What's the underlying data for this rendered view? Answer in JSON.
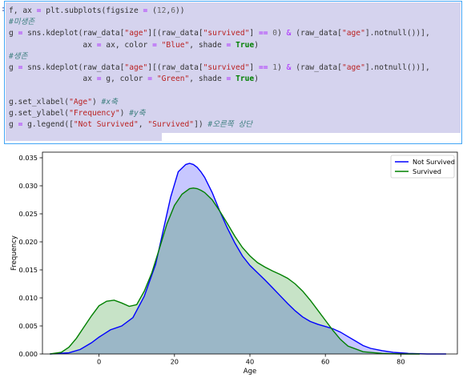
{
  "prompt": ":",
  "code_lines": [
    [
      {
        "t": "f, ax ",
        "c": ""
      },
      {
        "t": "=",
        "c": "op"
      },
      {
        "t": " plt.subplots(figsize ",
        "c": ""
      },
      {
        "t": "=",
        "c": "op"
      },
      {
        "t": " (",
        "c": ""
      },
      {
        "t": "12",
        "c": "nu"
      },
      {
        "t": ",",
        "c": ""
      },
      {
        "t": "6",
        "c": "nu"
      },
      {
        "t": "))",
        "c": ""
      }
    ],
    [
      {
        "t": "#미생존",
        "c": "cm"
      }
    ],
    [
      {
        "t": "g ",
        "c": ""
      },
      {
        "t": "=",
        "c": "op"
      },
      {
        "t": " sns.kdeplot(raw_data[",
        "c": ""
      },
      {
        "t": "\"age\"",
        "c": "st"
      },
      {
        "t": "][(raw_data[",
        "c": ""
      },
      {
        "t": "\"survived\"",
        "c": "st"
      },
      {
        "t": "] ",
        "c": ""
      },
      {
        "t": "==",
        "c": "op"
      },
      {
        "t": " ",
        "c": ""
      },
      {
        "t": "0",
        "c": "nu"
      },
      {
        "t": ") ",
        "c": ""
      },
      {
        "t": "&",
        "c": "op"
      },
      {
        "t": " (raw_data[",
        "c": ""
      },
      {
        "t": "\"age\"",
        "c": "st"
      },
      {
        "t": "].notnull())],",
        "c": ""
      }
    ],
    [
      {
        "t": "                ax ",
        "c": ""
      },
      {
        "t": "=",
        "c": "op"
      },
      {
        "t": " ax, color ",
        "c": ""
      },
      {
        "t": "=",
        "c": "op"
      },
      {
        "t": " ",
        "c": ""
      },
      {
        "t": "\"Blue\"",
        "c": "st"
      },
      {
        "t": ", shade ",
        "c": ""
      },
      {
        "t": "=",
        "c": "op"
      },
      {
        "t": " ",
        "c": ""
      },
      {
        "t": "True",
        "c": "kw"
      },
      {
        "t": ")",
        "c": ""
      }
    ],
    [
      {
        "t": "#생존",
        "c": "cm"
      }
    ],
    [
      {
        "t": "g ",
        "c": ""
      },
      {
        "t": "=",
        "c": "op"
      },
      {
        "t": " sns.kdeplot(raw_data[",
        "c": ""
      },
      {
        "t": "\"age\"",
        "c": "st"
      },
      {
        "t": "][(raw_data[",
        "c": ""
      },
      {
        "t": "\"survived\"",
        "c": "st"
      },
      {
        "t": "] ",
        "c": ""
      },
      {
        "t": "==",
        "c": "op"
      },
      {
        "t": " ",
        "c": ""
      },
      {
        "t": "1",
        "c": "nu"
      },
      {
        "t": ") ",
        "c": ""
      },
      {
        "t": "&",
        "c": "op"
      },
      {
        "t": " (raw_data[",
        "c": ""
      },
      {
        "t": "\"age\"",
        "c": "st"
      },
      {
        "t": "].notnull())],",
        "c": ""
      }
    ],
    [
      {
        "t": "                ax ",
        "c": ""
      },
      {
        "t": "=",
        "c": "op"
      },
      {
        "t": " g, color ",
        "c": ""
      },
      {
        "t": "=",
        "c": "op"
      },
      {
        "t": " ",
        "c": ""
      },
      {
        "t": "\"Green\"",
        "c": "st"
      },
      {
        "t": ", shade ",
        "c": ""
      },
      {
        "t": "=",
        "c": "op"
      },
      {
        "t": " ",
        "c": ""
      },
      {
        "t": "True",
        "c": "kw"
      },
      {
        "t": ")",
        "c": ""
      }
    ],
    [
      {
        "t": "",
        "c": ""
      }
    ],
    [
      {
        "t": "g.set_xlabel(",
        "c": ""
      },
      {
        "t": "\"Age\"",
        "c": "st"
      },
      {
        "t": ") ",
        "c": ""
      },
      {
        "t": "#x축",
        "c": "cm"
      }
    ],
    [
      {
        "t": "g.set_ylabel(",
        "c": ""
      },
      {
        "t": "\"Frequency\"",
        "c": "st"
      },
      {
        "t": ") ",
        "c": ""
      },
      {
        "t": "#y축",
        "c": "cm"
      }
    ],
    [
      {
        "t": "g ",
        "c": ""
      },
      {
        "t": "=",
        "c": "op"
      },
      {
        "t": " g.legend([",
        "c": ""
      },
      {
        "t": "\"Not Survived\"",
        "c": "st"
      },
      {
        "t": ", ",
        "c": ""
      },
      {
        "t": "\"Survived\"",
        "c": "st"
      },
      {
        "t": "]) ",
        "c": ""
      },
      {
        "t": "#오른쪽 상단",
        "c": "cm"
      }
    ]
  ],
  "colors": {
    "not_survived": "#0000ff",
    "survived": "#008000",
    "cell_border": "#42a5f5",
    "code_bg": "#d5d3ee"
  },
  "chart_data": {
    "type": "area",
    "xlabel": "Age",
    "ylabel": "Frequency",
    "xlim": [
      -15,
      95
    ],
    "ylim": [
      0,
      0.036
    ],
    "xticks": [
      0,
      20,
      40,
      60,
      80
    ],
    "xtick_labels": [
      "0",
      "20",
      "40",
      "60",
      "80"
    ],
    "yticks": [
      0.0,
      0.005,
      0.01,
      0.015,
      0.02,
      0.025,
      0.03,
      0.035
    ],
    "ytick_labels": [
      "0.000",
      "0.005",
      "0.010",
      "0.015",
      "0.020",
      "0.025",
      "0.030",
      "0.035"
    ],
    "grid": false,
    "legend": "top-right",
    "series": [
      {
        "name": "Not Survived",
        "color": "#0000ff",
        "x": [
          -13,
          -8,
          -5,
          -2,
          0,
          3,
          6,
          9,
          12,
          15,
          17,
          19,
          21,
          23,
          24,
          25,
          26,
          27,
          28,
          30,
          32,
          34,
          36,
          38,
          40,
          42,
          44,
          46,
          48,
          50,
          52,
          54,
          56,
          58,
          60,
          62,
          64,
          66,
          68,
          70,
          72,
          75,
          78,
          82,
          87,
          92
        ],
        "y": [
          0,
          0.0002,
          0.0008,
          0.002,
          0.003,
          0.0043,
          0.005,
          0.0065,
          0.0103,
          0.016,
          0.022,
          0.028,
          0.0325,
          0.0338,
          0.034,
          0.0338,
          0.0333,
          0.0325,
          0.0315,
          0.0288,
          0.0255,
          0.0225,
          0.0198,
          0.0175,
          0.0158,
          0.0145,
          0.0132,
          0.0118,
          0.0104,
          0.009,
          0.0077,
          0.0066,
          0.0058,
          0.0053,
          0.0049,
          0.0045,
          0.0039,
          0.0031,
          0.0023,
          0.0015,
          0.001,
          0.0006,
          0.0003,
          0.0001,
          0,
          0
        ]
      },
      {
        "name": "Survived",
        "color": "#008000",
        "x": [
          -13,
          -10,
          -8,
          -6,
          -4,
          -2,
          0,
          2,
          4,
          6,
          8,
          10,
          12,
          14,
          16,
          18,
          20,
          22,
          24,
          25,
          26,
          27,
          28,
          30,
          32,
          34,
          36,
          38,
          40,
          42,
          44,
          46,
          48,
          50,
          52,
          54,
          56,
          58,
          60,
          62,
          64,
          66,
          70,
          75,
          80,
          85
        ],
        "y": [
          0,
          0.0003,
          0.0012,
          0.0028,
          0.0048,
          0.0068,
          0.0086,
          0.0094,
          0.0096,
          0.0091,
          0.0085,
          0.0088,
          0.0112,
          0.0145,
          0.0188,
          0.0232,
          0.0265,
          0.0285,
          0.0295,
          0.0296,
          0.0295,
          0.0292,
          0.0288,
          0.0275,
          0.0255,
          0.0233,
          0.021,
          0.019,
          0.0175,
          0.0163,
          0.0155,
          0.0148,
          0.0142,
          0.0135,
          0.0125,
          0.0112,
          0.0096,
          0.0078,
          0.006,
          0.0042,
          0.0026,
          0.0014,
          0.0004,
          0.0001,
          0,
          0
        ]
      }
    ]
  }
}
